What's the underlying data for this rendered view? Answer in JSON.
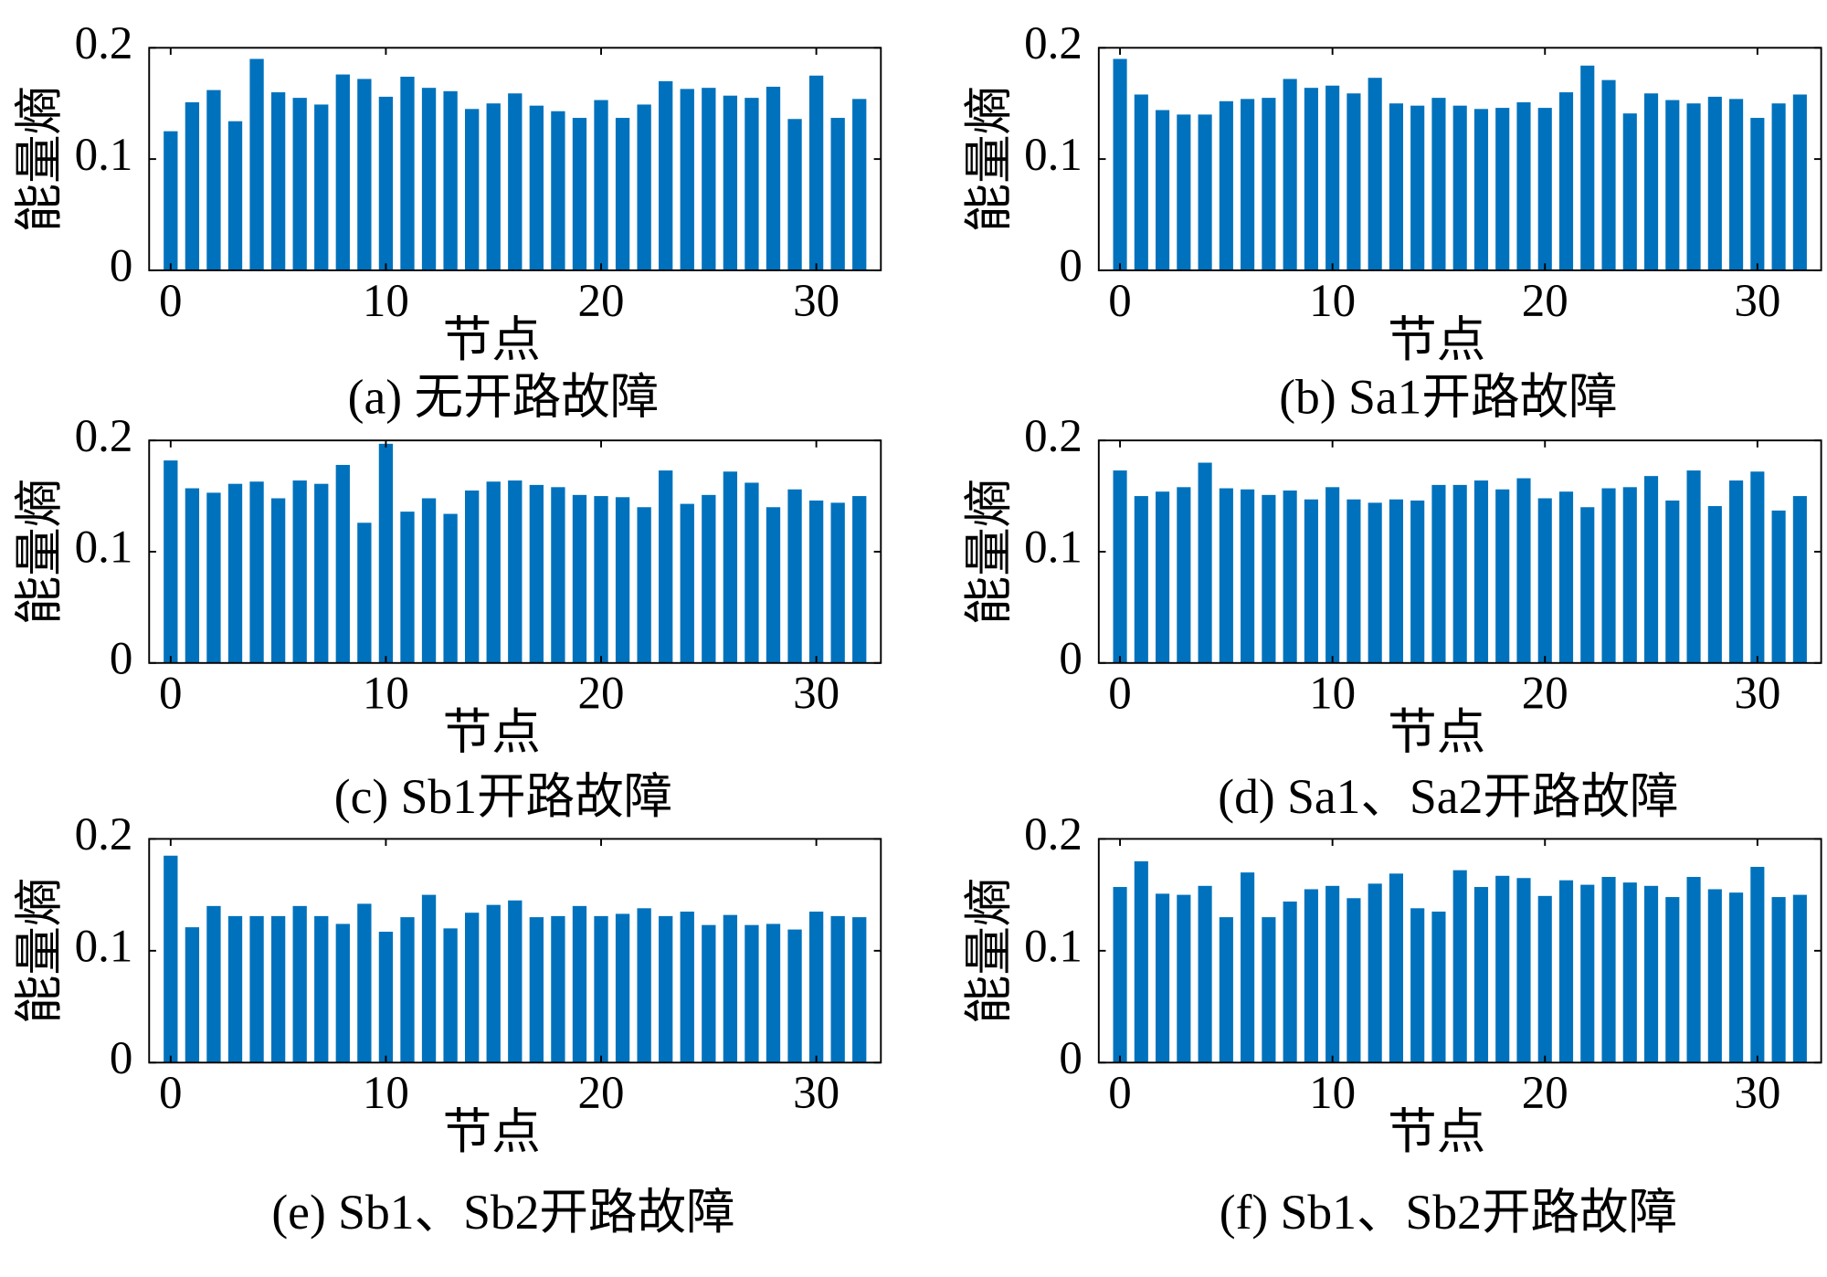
{
  "chart_data": [
    {
      "type": "bar",
      "title": "(a) 无开路故障",
      "xlabel": "节点",
      "ylabel": "能量熵",
      "color": "#0072bd",
      "x": [
        0,
        1,
        2,
        3,
        4,
        5,
        6,
        7,
        8,
        9,
        10,
        11,
        12,
        13,
        14,
        15,
        16,
        17,
        18,
        19,
        20,
        21,
        22,
        23,
        24,
        25,
        26,
        27,
        28,
        29,
        30,
        31,
        32
      ],
      "values": [
        0.125,
        0.151,
        0.162,
        0.134,
        0.19,
        0.16,
        0.155,
        0.149,
        0.176,
        0.172,
        0.156,
        0.174,
        0.164,
        0.161,
        0.145,
        0.15,
        0.159,
        0.148,
        0.143,
        0.137,
        0.153,
        0.137,
        0.149,
        0.17,
        0.163,
        0.164,
        0.157,
        0.155,
        0.165,
        0.136,
        0.175,
        0.137,
        0.154
      ],
      "xlim": [
        -1,
        33
      ],
      "xticks": [
        0,
        10,
        20,
        30
      ],
      "ylim": [
        0,
        0.2
      ],
      "yticks": [
        0,
        0.1,
        0.2
      ]
    },
    {
      "type": "bar",
      "title": "(b) Sa1开路故障",
      "xlabel": "节点",
      "ylabel": "能量熵",
      "color": "#0072bd",
      "x": [
        0,
        1,
        2,
        3,
        4,
        5,
        6,
        7,
        8,
        9,
        10,
        11,
        12,
        13,
        14,
        15,
        16,
        17,
        18,
        19,
        20,
        21,
        22,
        23,
        24,
        25,
        26,
        27,
        28,
        29,
        30,
        31,
        32
      ],
      "values": [
        0.19,
        0.158,
        0.144,
        0.14,
        0.14,
        0.152,
        0.154,
        0.155,
        0.172,
        0.164,
        0.166,
        0.159,
        0.173,
        0.15,
        0.148,
        0.155,
        0.148,
        0.145,
        0.146,
        0.151,
        0.146,
        0.16,
        0.184,
        0.171,
        0.141,
        0.159,
        0.153,
        0.15,
        0.156,
        0.154,
        0.137,
        0.15,
        0.158
      ],
      "xlim": [
        -1,
        33
      ],
      "xticks": [
        0,
        10,
        20,
        30
      ],
      "ylim": [
        0,
        0.2
      ],
      "yticks": [
        0,
        0.1,
        0.2
      ]
    },
    {
      "type": "bar",
      "title": "(c) Sb1开路故障",
      "xlabel": "节点",
      "ylabel": "能量熵",
      "color": "#0072bd",
      "x": [
        0,
        1,
        2,
        3,
        4,
        5,
        6,
        7,
        8,
        9,
        10,
        11,
        12,
        13,
        14,
        15,
        16,
        17,
        18,
        19,
        20,
        21,
        22,
        23,
        24,
        25,
        26,
        27,
        28,
        29,
        30,
        31,
        32
      ],
      "values": [
        0.182,
        0.157,
        0.153,
        0.161,
        0.163,
        0.148,
        0.164,
        0.161,
        0.178,
        0.126,
        0.197,
        0.136,
        0.148,
        0.134,
        0.155,
        0.163,
        0.164,
        0.16,
        0.158,
        0.151,
        0.15,
        0.149,
        0.14,
        0.173,
        0.143,
        0.151,
        0.172,
        0.162,
        0.14,
        0.156,
        0.146,
        0.144,
        0.15
      ],
      "xlim": [
        -1,
        33
      ],
      "xticks": [
        0,
        10,
        20,
        30
      ],
      "ylim": [
        0,
        0.2
      ],
      "yticks": [
        0,
        0.1,
        0.2
      ]
    },
    {
      "type": "bar",
      "title": "(d) Sa1、Sa2开路故障",
      "xlabel": "节点",
      "ylabel": "能量熵",
      "color": "#0072bd",
      "x": [
        0,
        1,
        2,
        3,
        4,
        5,
        6,
        7,
        8,
        9,
        10,
        11,
        12,
        13,
        14,
        15,
        16,
        17,
        18,
        19,
        20,
        21,
        22,
        23,
        24,
        25,
        26,
        27,
        28,
        29,
        30,
        31,
        32
      ],
      "values": [
        0.173,
        0.15,
        0.154,
        0.158,
        0.18,
        0.157,
        0.156,
        0.151,
        0.155,
        0.147,
        0.158,
        0.147,
        0.144,
        0.147,
        0.146,
        0.16,
        0.16,
        0.164,
        0.156,
        0.166,
        0.148,
        0.154,
        0.14,
        0.157,
        0.158,
        0.168,
        0.146,
        0.173,
        0.141,
        0.164,
        0.172,
        0.137,
        0.15
      ],
      "xlim": [
        -1,
        33
      ],
      "xticks": [
        0,
        10,
        20,
        30
      ],
      "ylim": [
        0,
        0.2
      ],
      "yticks": [
        0,
        0.1,
        0.2
      ]
    },
    {
      "type": "bar",
      "title": "(e) Sb1、Sb2开路故障",
      "xlabel": "节点",
      "ylabel": "能量熵",
      "color": "#0072bd",
      "x": [
        0,
        1,
        2,
        3,
        4,
        5,
        6,
        7,
        8,
        9,
        10,
        11,
        12,
        13,
        14,
        15,
        16,
        17,
        18,
        19,
        20,
        21,
        22,
        23,
        24,
        25,
        26,
        27,
        28,
        29,
        30,
        31,
        32
      ],
      "values": [
        0.185,
        0.121,
        0.14,
        0.131,
        0.131,
        0.131,
        0.14,
        0.131,
        0.124,
        0.142,
        0.117,
        0.13,
        0.15,
        0.12,
        0.134,
        0.141,
        0.145,
        0.13,
        0.131,
        0.14,
        0.131,
        0.133,
        0.138,
        0.131,
        0.135,
        0.123,
        0.132,
        0.123,
        0.124,
        0.119,
        0.135,
        0.131,
        0.13
      ],
      "xlim": [
        -1,
        33
      ],
      "xticks": [
        0,
        10,
        20,
        30
      ],
      "ylim": [
        0,
        0.2
      ],
      "yticks": [
        0,
        0.1,
        0.2
      ]
    },
    {
      "type": "bar",
      "title": "(f) Sb1、Sb2开路故障",
      "xlabel": "节点",
      "ylabel": "能量熵",
      "color": "#0072bd",
      "x": [
        0,
        1,
        2,
        3,
        4,
        5,
        6,
        7,
        8,
        9,
        10,
        11,
        12,
        13,
        14,
        15,
        16,
        17,
        18,
        19,
        20,
        21,
        22,
        23,
        24,
        25,
        26,
        27,
        28,
        29,
        30,
        31,
        32
      ],
      "values": [
        0.157,
        0.18,
        0.151,
        0.15,
        0.158,
        0.13,
        0.17,
        0.13,
        0.144,
        0.155,
        0.158,
        0.147,
        0.16,
        0.169,
        0.138,
        0.135,
        0.172,
        0.157,
        0.167,
        0.165,
        0.149,
        0.163,
        0.159,
        0.166,
        0.161,
        0.158,
        0.148,
        0.166,
        0.155,
        0.152,
        0.175,
        0.148,
        0.15
      ],
      "xlim": [
        -1,
        33
      ],
      "xticks": [
        0,
        10,
        20,
        30
      ],
      "ylim": [
        0,
        0.2
      ],
      "yticks": [
        0,
        0.1,
        0.2
      ]
    }
  ]
}
